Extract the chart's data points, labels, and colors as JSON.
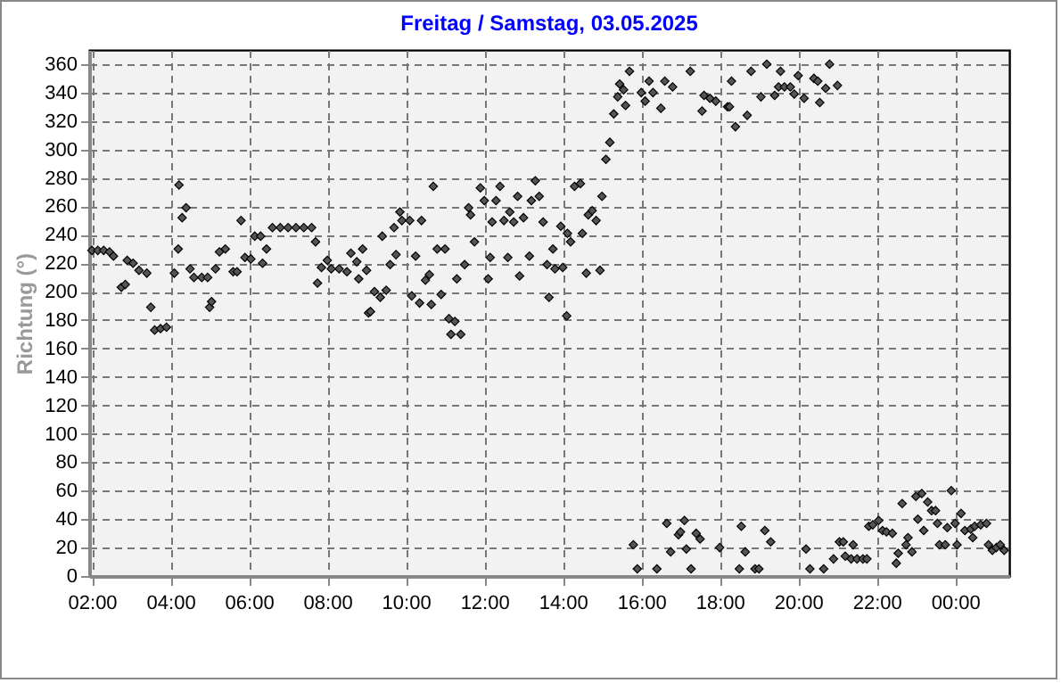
{
  "chart_data": {
    "type": "scatter",
    "title": "Freitag / Samstag, 03.05.2025",
    "ylabel": "Richtung (°)",
    "x": [
      2.0,
      2.15,
      2.3,
      2.45,
      2.55,
      2.75,
      2.85,
      2.9,
      3.05,
      3.2,
      3.4,
      3.5,
      3.6,
      3.75,
      3.9,
      4.1,
      4.2,
      4.22,
      4.3,
      4.4,
      4.5,
      4.6,
      4.8,
      4.95,
      5.0,
      5.05,
      5.15,
      5.25,
      5.4,
      5.6,
      5.7,
      5.8,
      5.9,
      6.05,
      6.15,
      6.3,
      6.35,
      6.45,
      6.6,
      6.8,
      7.0,
      7.2,
      7.4,
      7.6,
      7.7,
      7.75,
      7.85,
      8.0,
      8.1,
      8.3,
      8.5,
      8.6,
      8.75,
      8.8,
      8.9,
      9.0,
      9.05,
      9.1,
      9.2,
      9.35,
      9.4,
      9.5,
      9.6,
      9.7,
      9.75,
      9.85,
      9.9,
      10.1,
      10.15,
      10.25,
      10.35,
      10.4,
      10.5,
      10.6,
      10.65,
      10.7,
      10.8,
      10.9,
      11.0,
      11.1,
      11.15,
      11.25,
      11.3,
      11.4,
      11.5,
      11.6,
      11.65,
      11.75,
      11.9,
      12.0,
      12.1,
      12.15,
      12.2,
      12.3,
      12.4,
      12.5,
      12.6,
      12.65,
      12.75,
      12.85,
      12.9,
      13.0,
      13.15,
      13.2,
      13.3,
      13.4,
      13.5,
      13.6,
      13.65,
      13.75,
      13.8,
      13.95,
      14.0,
      14.1,
      14.12,
      14.2,
      14.3,
      14.45,
      14.5,
      14.6,
      14.65,
      14.75,
      14.85,
      14.95,
      15.0,
      15.1,
      15.2,
      15.3,
      15.4,
      15.45,
      15.55,
      15.6,
      15.7,
      15.8,
      15.9,
      16.0,
      16.1,
      16.2,
      16.3,
      16.4,
      16.5,
      16.6,
      16.65,
      16.75,
      16.8,
      16.95,
      17.0,
      17.1,
      17.15,
      17.25,
      17.27,
      17.4,
      17.5,
      17.55,
      17.6,
      17.75,
      17.9,
      18.0,
      18.2,
      18.25,
      18.3,
      18.4,
      18.5,
      18.55,
      18.65,
      18.7,
      18.8,
      18.9,
      19.0,
      19.05,
      19.15,
      19.2,
      19.3,
      19.4,
      19.5,
      19.55,
      19.65,
      19.8,
      19.9,
      20.0,
      20.15,
      20.2,
      20.3,
      20.4,
      20.5,
      20.55,
      20.65,
      20.7,
      20.8,
      20.9,
      21.0,
      21.05,
      21.15,
      21.2,
      21.35,
      21.4,
      21.5,
      21.65,
      21.75,
      21.8,
      21.9,
      22.05,
      22.15,
      22.25,
      22.4,
      22.5,
      22.55,
      22.65,
      22.75,
      22.8,
      22.9,
      23.0,
      23.05,
      23.15,
      23.2,
      23.3,
      23.4,
      23.5,
      23.55,
      23.6,
      23.75,
      23.8,
      23.9,
      24.0,
      24.05,
      24.15,
      24.25,
      24.4,
      24.45,
      24.5,
      24.65,
      24.8,
      24.85,
      24.95,
      25.05,
      25.15,
      25.25
    ],
    "values": [
      229,
      229,
      229,
      228,
      225,
      203,
      205,
      222,
      220,
      215,
      213,
      189,
      173,
      174,
      175,
      213,
      230,
      275,
      252,
      259,
      216,
      210,
      210,
      210,
      189,
      193,
      216,
      228,
      230,
      214,
      214,
      250,
      224,
      223,
      239,
      239,
      220,
      230,
      245,
      245,
      245,
      245,
      245,
      245,
      235,
      206,
      217,
      222,
      216,
      216,
      214,
      227,
      221,
      209,
      230,
      215,
      185,
      186,
      200,
      196,
      239,
      201,
      219,
      245,
      226,
      256,
      250,
      250,
      197,
      225,
      192,
      250,
      208,
      212,
      191,
      274,
      230,
      198,
      230,
      181,
      170,
      179,
      209,
      170,
      219,
      259,
      254,
      235,
      273,
      264,
      209,
      224,
      249,
      264,
      274,
      250,
      224,
      256,
      249,
      267,
      211,
      252,
      225,
      264,
      278,
      267,
      249,
      219,
      196,
      230,
      216,
      246,
      217,
      183,
      241,
      235,
      274,
      276,
      241,
      213,
      254,
      257,
      250,
      215,
      267,
      293,
      305,
      325,
      337,
      346,
      342,
      331,
      355,
      22,
      5,
      340,
      334,
      348,
      340,
      5,
      329,
      348,
      37,
      17,
      344,
      29,
      31,
      39,
      19,
      355,
      5,
      30,
      26,
      327,
      338,
      336,
      334,
      20,
      330,
      330,
      348,
      316,
      5,
      35,
      17,
      324,
      355,
      5,
      5,
      337,
      32,
      360,
      24,
      338,
      344,
      355,
      344,
      344,
      339,
      352,
      336,
      19,
      5,
      350,
      348,
      333,
      5,
      343,
      360,
      12,
      345,
      24,
      24,
      14,
      12,
      22,
      12,
      12,
      12,
      35,
      36,
      39,
      32,
      31,
      30,
      9,
      16,
      51,
      22,
      27,
      17,
      56,
      40,
      58,
      32,
      52,
      46,
      46,
      37,
      22,
      22,
      34,
      60,
      37,
      22,
      44,
      32,
      33,
      27,
      35,
      36,
      37,
      22,
      18,
      20,
      22,
      18
    ],
    "color": "#555555",
    "marker": "diamond",
    "xlim": [
      1.93,
      25.38
    ],
    "xticks": [
      {
        "value": 2,
        "label": "02:00"
      },
      {
        "value": 4,
        "label": "04:00"
      },
      {
        "value": 6,
        "label": "06:00"
      },
      {
        "value": 8,
        "label": "08:00"
      },
      {
        "value": 10,
        "label": "10:00"
      },
      {
        "value": 12,
        "label": "12:00"
      },
      {
        "value": 14,
        "label": "14:00"
      },
      {
        "value": 16,
        "label": "16:00"
      },
      {
        "value": 18,
        "label": "18:00"
      },
      {
        "value": 20,
        "label": "20:00"
      },
      {
        "value": 22,
        "label": "22:00"
      },
      {
        "value": 24,
        "label": "00:00"
      }
    ],
    "ylim": [
      0,
      370
    ],
    "yticks": [
      0,
      20,
      40,
      60,
      80,
      100,
      120,
      140,
      160,
      180,
      200,
      220,
      240,
      260,
      280,
      300,
      320,
      340,
      360
    ],
    "grid": true,
    "legend": false
  }
}
